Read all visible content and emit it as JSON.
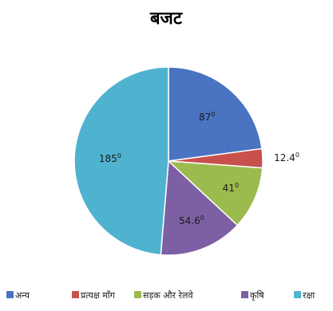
{
  "chart_data": {
    "type": "pie",
    "title": "बजट",
    "unit_symbol": "0",
    "slices": [
      {
        "name": "अन्य",
        "value": 87,
        "label": "87",
        "color": "#4a73c2"
      },
      {
        "name": "प्रत्यक्ष मॉंग",
        "value": 12.4,
        "label": "12.4",
        "color": "#c9514d"
      },
      {
        "name": "सड़क और रेलवे",
        "value": 41,
        "label": "41",
        "color": "#9bbb4f"
      },
      {
        "name": "कृषि",
        "value": 54.6,
        "label": "54.6",
        "color": "#7d5fa4"
      },
      {
        "name": "रक्षा",
        "value": 185,
        "label": "185",
        "color": "#4fb3cf"
      }
    ],
    "legend_position": "bottom"
  }
}
